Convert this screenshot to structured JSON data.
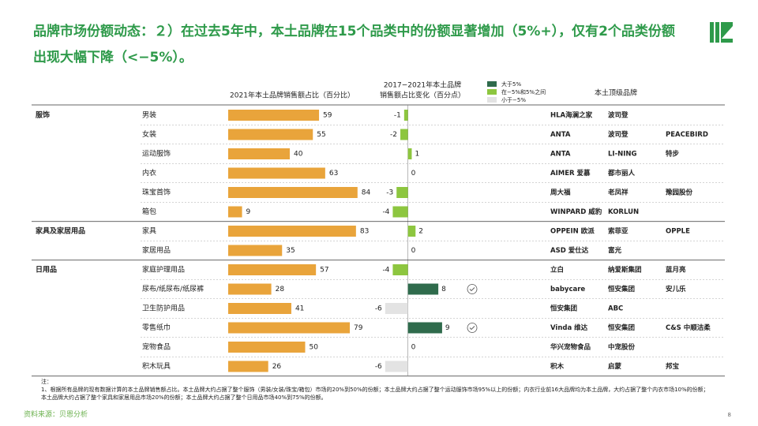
{
  "chart_data": {
    "type": "bar",
    "title": "品牌市场份额动态：２）在过去5年中，本土品牌在15个品类中的份额显著增加（5%+），仅有2个品类份额出现大幅下降（<−5%）。",
    "share_header": "2021年本土品牌销售额占比（百分比）",
    "change_header": [
      "2017−2021年本土品牌",
      "销售额占比变化（百分点）"
    ],
    "brand_header": "本土顶级品牌",
    "legend": [
      {
        "label": "大于5%",
        "color": "#2f6b4c"
      },
      {
        "label": "在−5%和5%之间",
        "color": "#8dc63f"
      },
      {
        "label": "小于−5%",
        "color": "#e3e3e3"
      }
    ],
    "row_groups": [
      "服饰",
      null,
      null,
      null,
      null,
      null,
      "家具及家居用品",
      null,
      "日用品",
      null,
      null,
      null,
      null,
      null
    ],
    "categories": [
      "男装",
      "女装",
      "运动服饰",
      "内衣",
      "珠宝首饰",
      "箱包",
      "家具",
      "家居用品",
      "家庭护理用品",
      "尿布/纸尿布/纸尿裤",
      "卫生防护用品",
      "零售纸巾",
      "宠物食品",
      "积木玩具"
    ],
    "series": [
      {
        "name": "2021年本土品牌销售额占比",
        "color": "#e9a43b",
        "values": [
          59,
          55,
          40,
          63,
          84,
          9,
          83,
          35,
          57,
          28,
          41,
          79,
          50,
          26
        ],
        "xlim": [
          0,
          100
        ]
      },
      {
        "name": "2017−2021年本土品牌销售额占比变化",
        "values": [
          -1,
          -2,
          1,
          0,
          -3,
          -4,
          2,
          0,
          -4,
          8,
          -6,
          9,
          0,
          -6
        ],
        "xlim": [
          -7,
          19
        ],
        "colors": [
          "#8dc63f",
          "#8dc63f",
          "#8dc63f",
          "#8dc63f",
          "#8dc63f",
          "#8dc63f",
          "#8dc63f",
          "#8dc63f",
          "#8dc63f",
          "#2f6b4c",
          "#e3e3e3",
          "#2f6b4c",
          "#8dc63f",
          "#e3e3e3"
        ]
      }
    ],
    "checked": [
      false,
      false,
      false,
      false,
      false,
      false,
      false,
      false,
      false,
      true,
      false,
      true,
      false,
      false
    ],
    "brands": [
      [
        "HLA海澜之家",
        "波司登"
      ],
      [
        "ANTA",
        "波司登",
        "PEACEBIRD"
      ],
      [
        "ANTA",
        "LI-NING",
        "特步"
      ],
      [
        "AIMER 爱慕",
        "都市丽人"
      ],
      [
        "周大福",
        "老凤祥",
        "豫园股份"
      ],
      [
        "WINPARD 威豹",
        "KORLUN"
      ],
      [
        "OPPEIN 欧派",
        "索菲亚",
        "OPPLE"
      ],
      [
        "ASD 爱仕达",
        "富光"
      ],
      [
        "立白",
        "纳爱斯集团",
        "蓝月亮"
      ],
      [
        "babycare",
        "恒安集团",
        "安儿乐"
      ],
      [
        "恒安集团",
        "ABC"
      ],
      [
        "Vinda 维达",
        "恒安集团",
        "C&S 中顺洁柔"
      ],
      [
        "华兴宠物食品",
        "中宠股份"
      ],
      [
        "积木",
        "启蒙",
        "邦宝"
      ]
    ],
    "notes": [
      "注：",
      "1、根据所有品牌的现有数据计算的本土品牌销售额占比。本土品牌大约占据了整个服饰（男装/女装/珠宝/箱包）市场的20%到50%的份额；本土品牌大约占据了整个运动服饰市场95%以上的份额；内衣行业前16大品牌均为本土品牌，大约占据了整个内衣市场10%的份额；本土品牌大约占据了整个家具和家居用品市场20%的份额；本土品牌大约占据了整个日用品市场40%到75%的份额。"
    ],
    "source": "资料来源：贝恩分析",
    "page": "8"
  }
}
